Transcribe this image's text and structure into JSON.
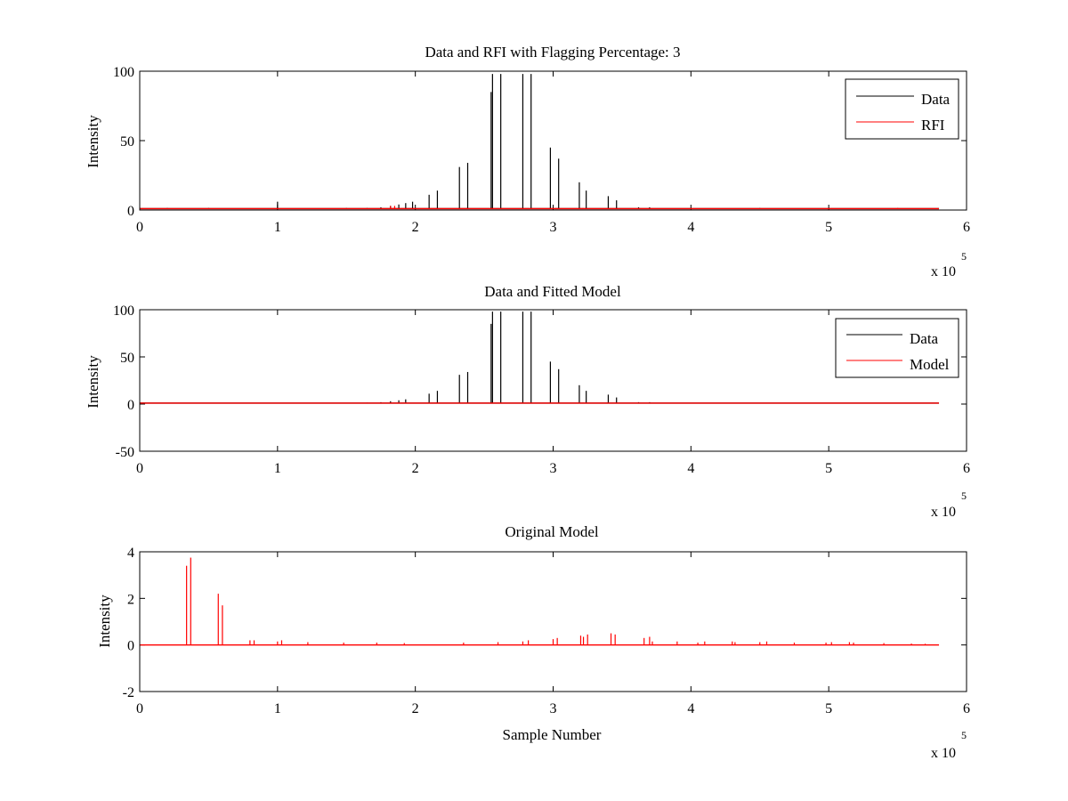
{
  "figure": {
    "background": "#ffffff",
    "axis_color": "#000000"
  },
  "chart_data": [
    {
      "type": "line",
      "title": "Data and RFI with Flagging Percentage: 3",
      "xlabel": "",
      "ylabel": "Intensity",
      "xlim": [
        0,
        6
      ],
      "ylim": [
        0,
        100
      ],
      "xticks": [
        "0",
        "1",
        "2",
        "3",
        "4",
        "5",
        "6"
      ],
      "yticks": [
        "0",
        "50",
        "100"
      ],
      "ytick_values": [
        0,
        50,
        100
      ],
      "x_multiplier_label": "x 10",
      "x_multiplier_exponent": "5",
      "x_end": 5.8,
      "baseline": 1,
      "legend": {
        "placement": "top-right",
        "entries": [
          {
            "label": "Data",
            "color": "#000000"
          },
          {
            "label": "RFI",
            "color": "#ff0000"
          }
        ]
      },
      "series": [
        {
          "name": "Data",
          "color": "#000000",
          "spikes": [
            [
              0.2,
              1.5
            ],
            [
              0.5,
              1.5
            ],
            [
              1.0,
              6
            ],
            [
              1.5,
              1.5
            ],
            [
              1.65,
              1.5
            ],
            [
              1.75,
              2
            ],
            [
              1.82,
              3
            ],
            [
              1.88,
              4
            ],
            [
              1.93,
              5
            ],
            [
              1.98,
              6
            ],
            [
              2.1,
              11
            ],
            [
              2.16,
              14
            ],
            [
              2.32,
              31
            ],
            [
              2.38,
              34
            ],
            [
              2.55,
              85
            ],
            [
              2.56,
              98
            ],
            [
              2.62,
              98
            ],
            [
              2.78,
              98
            ],
            [
              2.84,
              98
            ],
            [
              2.98,
              45
            ],
            [
              3.04,
              37
            ],
            [
              3.19,
              20
            ],
            [
              3.24,
              14
            ],
            [
              3.4,
              10
            ],
            [
              3.46,
              7
            ],
            [
              3.62,
              2
            ],
            [
              3.7,
              2
            ],
            [
              4.0,
              1.5
            ],
            [
              4.5,
              1.5
            ],
            [
              5.0,
              1.5
            ],
            [
              5.5,
              1.5
            ]
          ]
        },
        {
          "name": "RFI",
          "color": "#ff0000",
          "spikes": [
            [
              1.82,
              3
            ],
            [
              1.85,
              3
            ],
            [
              5.5,
              1.5
            ]
          ]
        }
      ]
    },
    {
      "type": "line",
      "title": "Data and Fitted Model",
      "xlabel": "",
      "ylabel": "Intensity",
      "xlim": [
        0,
        6
      ],
      "ylim": [
        -50,
        100
      ],
      "xticks": [
        "0",
        "1",
        "2",
        "3",
        "4",
        "5",
        "6"
      ],
      "yticks": [
        "-50",
        "0",
        "50",
        "100"
      ],
      "ytick_values": [
        -50,
        0,
        50,
        100
      ],
      "x_multiplier_label": "x 10",
      "x_multiplier_exponent": "5",
      "x_end": 5.8,
      "baseline": 1,
      "legend": {
        "placement": "top-right",
        "entries": [
          {
            "label": "Data",
            "color": "#000000"
          },
          {
            "label": "Model",
            "color": "#ff0000"
          }
        ]
      },
      "series": [
        {
          "name": "Data",
          "color": "#000000",
          "spikes": [
            [
              1.65,
              1.5
            ],
            [
              1.75,
              2
            ],
            [
              1.82,
              3
            ],
            [
              1.88,
              4
            ],
            [
              1.93,
              5
            ],
            [
              2.1,
              11
            ],
            [
              2.16,
              14
            ],
            [
              2.32,
              31
            ],
            [
              2.38,
              34
            ],
            [
              2.55,
              85
            ],
            [
              2.56,
              98
            ],
            [
              2.62,
              98
            ],
            [
              2.78,
              98
            ],
            [
              2.84,
              98
            ],
            [
              2.98,
              45
            ],
            [
              3.04,
              37
            ],
            [
              3.19,
              20
            ],
            [
              3.24,
              14
            ],
            [
              3.4,
              10
            ],
            [
              3.46,
              7
            ],
            [
              3.62,
              2
            ],
            [
              3.7,
              2
            ]
          ]
        },
        {
          "name": "Model",
          "color": "#ff0000",
          "spikes": []
        }
      ]
    },
    {
      "type": "line",
      "title": "Original Model",
      "xlabel": "Sample Number",
      "ylabel": "Intensity",
      "xlim": [
        0,
        6
      ],
      "ylim": [
        -2,
        4
      ],
      "xticks": [
        "0",
        "1",
        "2",
        "3",
        "4",
        "5",
        "6"
      ],
      "yticks": [
        "-2",
        "0",
        "2",
        "4"
      ],
      "ytick_values": [
        -2,
        0,
        2,
        4
      ],
      "x_multiplier_label": "x 10",
      "x_multiplier_exponent": "5",
      "x_end": 5.8,
      "baseline": 0,
      "legend": null,
      "series": [
        {
          "name": "Original Model",
          "color": "#ff0000",
          "spikes": [
            [
              0.34,
              3.4
            ],
            [
              0.37,
              3.75
            ],
            [
              0.57,
              2.2
            ],
            [
              0.6,
              1.7
            ],
            [
              0.8,
              0.2
            ],
            [
              0.83,
              0.2
            ],
            [
              1.0,
              0.15
            ],
            [
              1.03,
              0.2
            ],
            [
              1.22,
              0.12
            ],
            [
              1.48,
              0.1
            ],
            [
              1.72,
              0.1
            ],
            [
              1.92,
              0.08
            ],
            [
              2.35,
              0.1
            ],
            [
              2.6,
              0.12
            ],
            [
              2.78,
              0.15
            ],
            [
              2.82,
              0.2
            ],
            [
              3.0,
              0.25
            ],
            [
              3.03,
              0.3
            ],
            [
              3.2,
              0.4
            ],
            [
              3.22,
              0.35
            ],
            [
              3.25,
              0.45
            ],
            [
              3.42,
              0.5
            ],
            [
              3.45,
              0.45
            ],
            [
              3.66,
              0.3
            ],
            [
              3.7,
              0.35
            ],
            [
              3.72,
              0.15
            ],
            [
              3.9,
              0.15
            ],
            [
              4.05,
              0.1
            ],
            [
              4.1,
              0.15
            ],
            [
              4.3,
              0.15
            ],
            [
              4.32,
              0.12
            ],
            [
              4.5,
              0.12
            ],
            [
              4.55,
              0.15
            ],
            [
              4.75,
              0.1
            ],
            [
              4.98,
              0.1
            ],
            [
              5.02,
              0.12
            ],
            [
              5.15,
              0.12
            ],
            [
              5.18,
              0.1
            ],
            [
              5.4,
              0.08
            ],
            [
              5.6,
              0.06
            ],
            [
              5.7,
              0.05
            ]
          ]
        }
      ]
    }
  ]
}
